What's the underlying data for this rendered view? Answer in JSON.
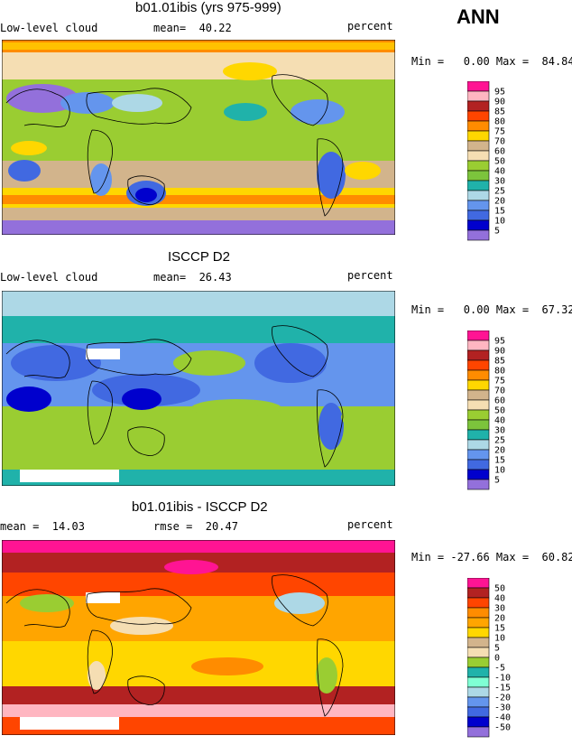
{
  "season": "ANN",
  "panels": [
    {
      "title": "b01.01ibis (yrs 975-999)",
      "left_label": "Low-level cloud",
      "stat1": "mean=  40.22",
      "stat2": "",
      "units": "percent",
      "minmax": "Min =   0.00 Max =  84.84",
      "levels": [
        "95",
        "90",
        "85",
        "80",
        "75",
        "70",
        "60",
        "50",
        "40",
        "30",
        "25",
        "20",
        "15",
        "10",
        "5"
      ],
      "colors": [
        "#ff1493",
        "#ffb6c1",
        "#b22222",
        "#ff4500",
        "#ff8c00",
        "#ffd700",
        "#d2b48c",
        "#f5deb3",
        "#9acd32",
        "#7cc43c",
        "#20b2aa",
        "#add8e6",
        "#6495ed",
        "#4169e1",
        "#0000cd",
        "#9370db"
      ]
    },
    {
      "title": "ISCCP D2",
      "left_label": "Low-level cloud",
      "stat1": "mean=  26.43",
      "stat2": "",
      "units": "percent",
      "minmax": "Min =   0.00 Max =  67.32",
      "levels": [
        "95",
        "90",
        "85",
        "80",
        "75",
        "70",
        "60",
        "50",
        "40",
        "30",
        "25",
        "20",
        "15",
        "10",
        "5"
      ],
      "colors": [
        "#ff1493",
        "#ffb6c1",
        "#b22222",
        "#ff4500",
        "#ff8c00",
        "#ffd700",
        "#d2b48c",
        "#f5deb3",
        "#9acd32",
        "#7cc43c",
        "#20b2aa",
        "#add8e6",
        "#6495ed",
        "#4169e1",
        "#0000cd",
        "#9370db"
      ]
    },
    {
      "title": "b01.01ibis - ISCCP D2",
      "left_label": "mean =  14.03",
      "stat1": "",
      "stat2": "rmse =  20.47",
      "units": "percent",
      "minmax": "Min = -27.66 Max =  60.82",
      "levels": [
        "50",
        "40",
        "30",
        "20",
        "15",
        "10",
        "5",
        "0",
        "-5",
        "-10",
        "-15",
        "-20",
        "-30",
        "-40",
        "-50"
      ],
      "colors": [
        "#ff1493",
        "#b22222",
        "#ff4500",
        "#ff8c00",
        "#ffa500",
        "#ffd700",
        "#d2b48c",
        "#f5deb3",
        "#9acd32",
        "#20b2aa",
        "#7fffd4",
        "#add8e6",
        "#6495ed",
        "#4169e1",
        "#0000cd",
        "#9370db"
      ]
    }
  ]
}
